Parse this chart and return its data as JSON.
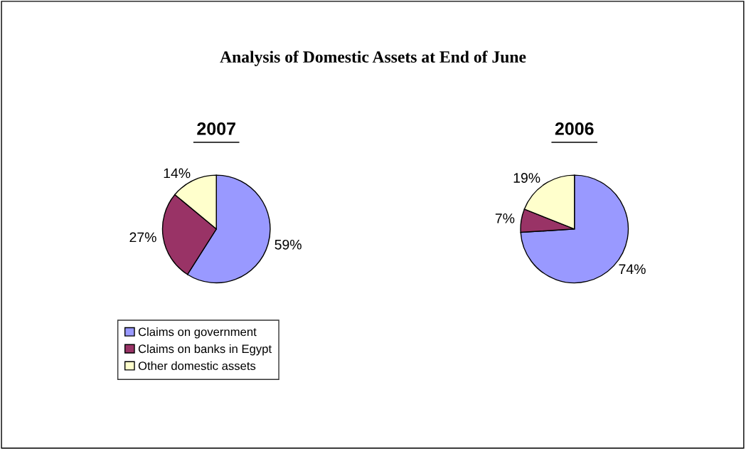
{
  "chart_data": [
    {
      "type": "pie",
      "title": "Analysis of Domestic Assets at End of June",
      "subtitle": "2007",
      "categories": [
        "Claims on government",
        "Claims on banks in Egypt",
        "Other domestic assets"
      ],
      "values": [
        59,
        27,
        14
      ],
      "value_labels": [
        "59%",
        "27%",
        "14%"
      ],
      "colors": [
        "#9999ff",
        "#993366",
        "#ffffcc"
      ],
      "legend": "bottom"
    },
    {
      "type": "pie",
      "title": "2006",
      "categories": [
        null,
        null,
        null
      ],
      "values": [
        74,
        7,
        19
      ],
      "value_labels": [
        "74%",
        "7%",
        "19%"
      ],
      "colors": [
        "#9999ff",
        "#993366",
        "#ffffcc"
      ]
    }
  ]
}
